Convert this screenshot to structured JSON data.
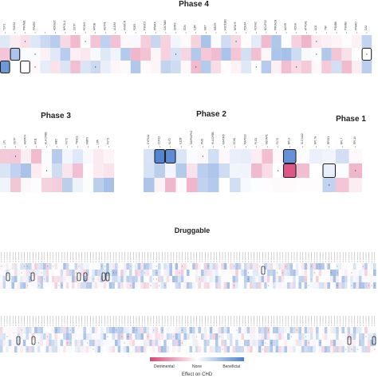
{
  "chart_data": [
    {
      "type": "heatmap",
      "title": "Phase 4",
      "columns": [
        "TCF1",
        "FADS2",
        "PRKAB1",
        "PPARG",
        "",
        "ADRA2C",
        "NPC1L1",
        "CETP",
        "PCSK9",
        "APOB",
        "AGTR1",
        "ALOX5",
        "HMGCR",
        "PDE5",
        "PSMC3",
        "PPARA",
        "CACNB1",
        "GRIK2",
        "EDN",
        "IL6R",
        "MET",
        "MECR",
        "HSD11B1",
        "NR1H3",
        "PDE3A",
        "KCNH2",
        "NDUFS2",
        "PRKACB",
        "AGXR",
        "KCNH",
        "ATP1A1",
        "ACE",
        "TNF",
        "PSMB8",
        "PSMB9",
        "PPARD",
        "CA2"
      ],
      "rows": [
        [
          "",
          "",
          "",
          "",
          "",
          "",
          "",
          "",
          "",
          "",
          "",
          "",
          "",
          "",
          "",
          "",
          "",
          "",
          "",
          "",
          "",
          "",
          "",
          "",
          "",
          "",
          "",
          "",
          "",
          "",
          "",
          "",
          "",
          "",
          "",
          "",
          ""
        ],
        [
          "",
          "",
          "",
          "",
          "",
          "",
          "",
          "",
          "",
          "",
          "",
          "",
          "",
          "",
          "",
          "",
          "",
          "",
          "",
          "",
          "",
          "",
          "",
          "",
          "",
          "",
          "",
          "",
          "",
          "",
          "",
          "",
          "",
          "",
          "",
          "",
          ""
        ],
        [
          "",
          "",
          "",
          "",
          "",
          "",
          "",
          "",
          "",
          "",
          "",
          "",
          "",
          "",
          "",
          "",
          "",
          "",
          "",
          "",
          "",
          "",
          "",
          "",
          "",
          "",
          "",
          "",
          "",
          "",
          "",
          "",
          "",
          "",
          "",
          "",
          ""
        ]
      ]
    },
    {
      "type": "heatmap",
      "title": "Phase 3",
      "columns": [
        "LPL",
        "CETP",
        "AGPAT4",
        "AK11",
        "HLA-DRB1",
        "ABO",
        "FUT2",
        "TNNC1",
        "MMP9",
        "LPA",
        "FUT1"
      ],
      "rows": [
        [
          "",
          "",
          "",
          "",
          "",
          "",
          "",
          "",
          "",
          "",
          ""
        ],
        [
          "",
          "",
          "",
          "",
          "",
          "",
          "",
          "",
          "",
          "",
          ""
        ],
        [
          "",
          "",
          "",
          "",
          "",
          "",
          "",
          "",
          "",
          "",
          ""
        ]
      ]
    },
    {
      "type": "heatmap",
      "title": "Phase 2",
      "columns": [
        "CYP2A1",
        "CDK12",
        "KLF2",
        "IL12B",
        "MAPKAPK2",
        "PMD",
        "HLA-DRB1",
        "MAP3K6",
        "CD40",
        "MAPK10",
        "PLG2",
        "METAP1",
        "FUT2"
      ],
      "rows": [
        [
          "",
          "",
          "",
          "",
          "",
          "",
          "",
          "",
          "",
          "",
          "",
          "",
          ""
        ],
        [
          "",
          "",
          "",
          "",
          "",
          "",
          "",
          "",
          "",
          "",
          "",
          "",
          ""
        ],
        [
          "",
          "",
          "",
          "",
          "",
          "",
          "",
          "",
          "",
          "",
          "",
          "",
          ""
        ]
      ]
    },
    {
      "type": "heatmap",
      "title": "Phase 1",
      "columns": [
        "BPLS",
        "SLC44A2",
        "RPL7A",
        "RPS31",
        "RPL7",
        "RPL19"
      ],
      "rows": [
        [
          "",
          "",
          "",
          "",
          "",
          ""
        ],
        [
          "",
          "",
          "",
          "",
          "",
          ""
        ],
        [
          "",
          "",
          "",
          "",
          "",
          ""
        ]
      ]
    },
    {
      "type": "heatmap",
      "title": "Druggable",
      "rows_count": 8
    }
  ],
  "legend": {
    "left_label": "Detrimental",
    "mid_label": "None",
    "right_label": "Beneficial",
    "axis_label": "Effect on CHD"
  },
  "colors": {
    "negative": "#d9457a",
    "neutral": "#ffffff",
    "positive": "#4a7fd0",
    "outline": "#222222"
  }
}
